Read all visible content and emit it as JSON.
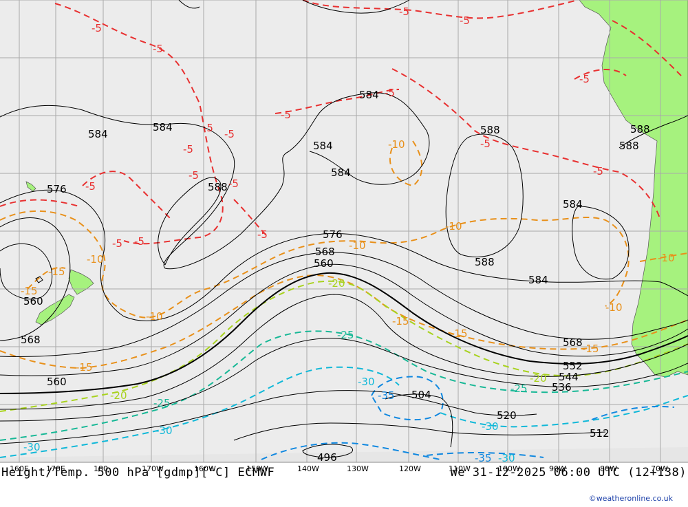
{
  "title": "Height/Temp. 500 hPa [gdmp][°C] ECMWF",
  "valid_time": "We 31-12-2025 06:00 UTC (12+138)",
  "credit": "©weatheronline.co.uk",
  "colors": {
    "ocean": "#ececec",
    "land": "#a6f27e",
    "grid": "#a9a9a9",
    "height_contour": "#000000",
    "temp_minus5": "#e83030",
    "temp_minus10": "#e8901a",
    "temp_minus15": "#e8901a",
    "temp_minus20": "#a8d21e",
    "temp_minus25": "#18b896",
    "temp_minus30": "#10b8d8",
    "temp_minus35": "#1088e0"
  },
  "longitude_labels": [
    "160E",
    "170E",
    "180",
    "170W",
    "160W",
    "150W",
    "140W",
    "130W",
    "120W",
    "110W",
    "100W",
    "90W",
    "80W",
    "70W"
  ],
  "height_labels": [
    "584",
    "584",
    "576",
    "560",
    "568",
    "560",
    "584",
    "584",
    "584",
    "588",
    "576",
    "568",
    "560",
    "588",
    "588",
    "588",
    "584",
    "584",
    "568",
    "552",
    "544",
    "536",
    "504",
    "520",
    "512",
    "496",
    "588"
  ],
  "temp_labels": [
    "-5",
    "-5",
    "-5",
    "-5",
    "-5",
    "-5",
    "-5",
    "-5",
    "-5",
    "-5",
    "-5",
    "-5",
    "-5",
    "-5",
    "-5",
    "-5",
    "-5",
    "-5",
    "-10",
    "-10",
    "-10",
    "-10",
    "-10",
    "-10",
    "-10",
    "-15",
    "-15",
    "-15",
    "-15",
    "-15",
    "-15",
    "-20",
    "-20",
    "-20",
    "-25",
    "-25",
    "-25",
    "-30",
    "-30",
    "-30",
    "-30",
    "-35",
    "-35",
    "-30"
  ]
}
